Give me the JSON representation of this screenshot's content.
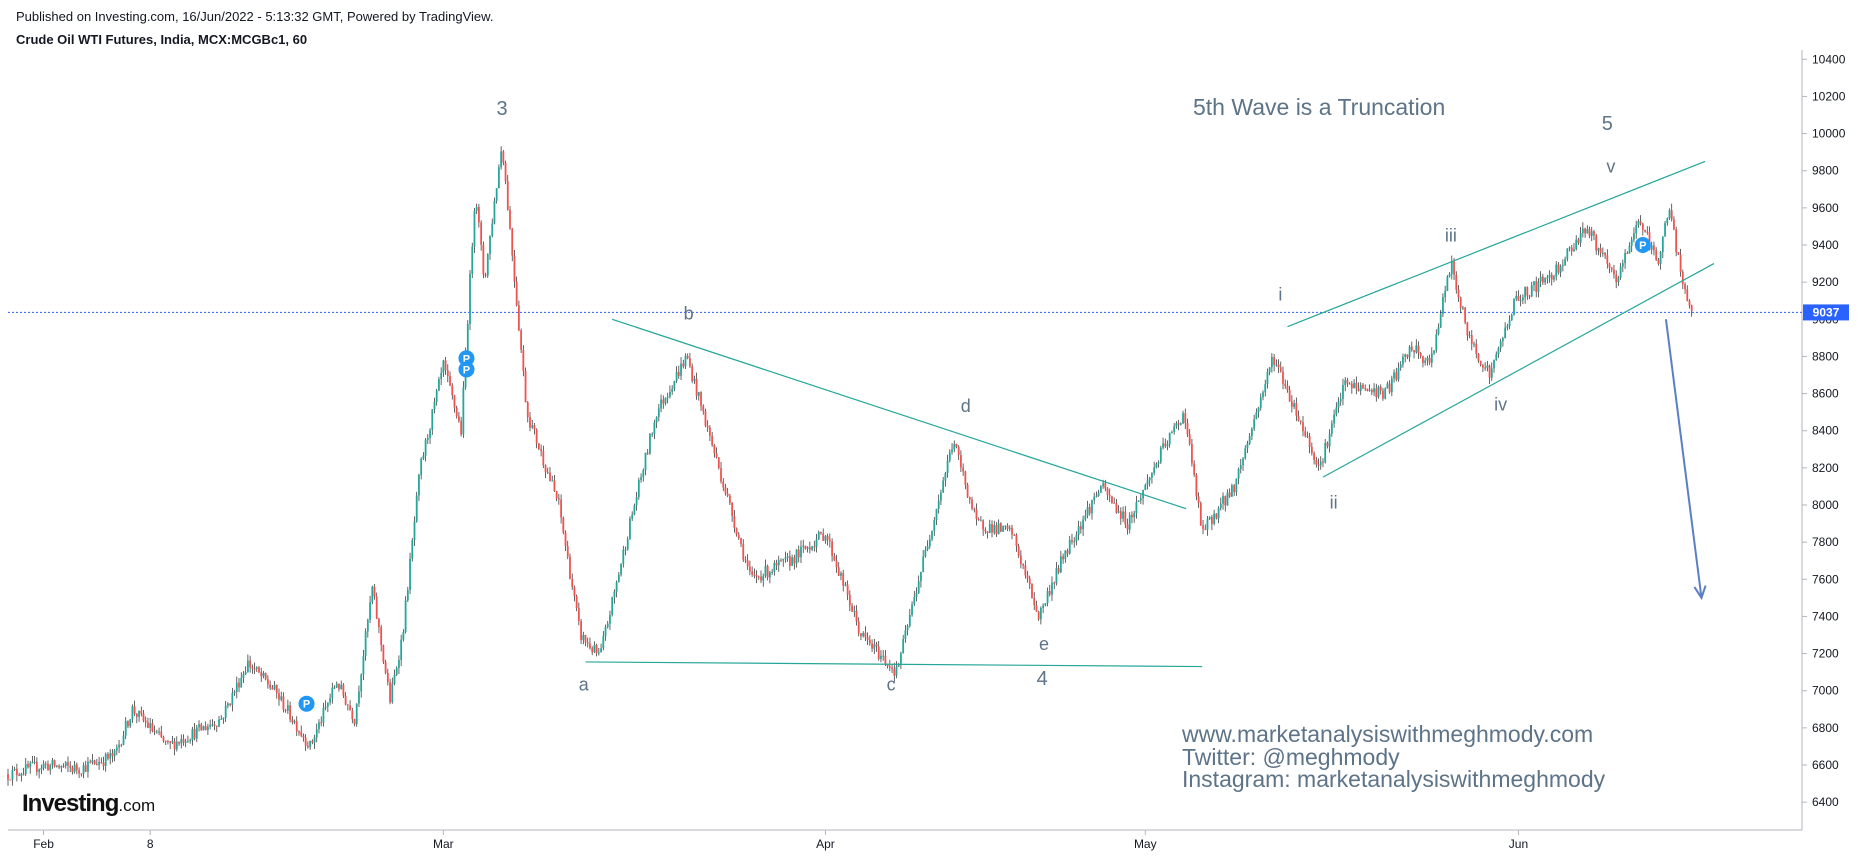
{
  "header": {
    "published": "Published on Investing.com, 16/Jun/2022 - 5:13:32 GMT, Powered by TradingView.",
    "symbol": "Crude Oil WTI Futures, India, MCX:MCGBc1, 60"
  },
  "watermark": {
    "website": "www.marketanalysiswithmeghmody.com",
    "twitter": "Twitter: @meghmody",
    "instagram": "Instagram: marketanalysiswithmeghmody"
  },
  "logo": {
    "main": "Investing",
    "suffix": ".com"
  },
  "colors": {
    "candle_up": "#26a69a",
    "candle_down": "#ef5350",
    "wick": "#222222",
    "trendline": "#26a69a",
    "price_line": "#2962ff",
    "arrow": "#5b7fc4",
    "marker": "#2196f3",
    "wave_label": "#5d7387"
  },
  "chart_data": {
    "type": "line",
    "title": "5th Wave is a Truncation",
    "y_axis": {
      "ticks": [
        6400,
        6600,
        6800,
        7000,
        7200,
        7400,
        7600,
        7800,
        8000,
        8200,
        8400,
        8600,
        8800,
        9000,
        9200,
        9400,
        9600,
        9800,
        10000,
        10200,
        10400
      ],
      "ylim": [
        6250,
        10450
      ],
      "position": "right"
    },
    "x_axis": {
      "labels": [
        {
          "label": "Feb",
          "x": 20
        },
        {
          "label": "8",
          "x": 80
        },
        {
          "label": "Mar",
          "x": 245
        },
        {
          "label": "Apr",
          "x": 460
        },
        {
          "label": "May",
          "x": 640
        },
        {
          "label": "Jun",
          "x": 850
        }
      ],
      "xlim": [
        0,
        1000
      ]
    },
    "current_price": {
      "value": 9037,
      "label": "9037"
    },
    "price_path": [
      {
        "x": 0,
        "y": 6550
      },
      {
        "x": 20,
        "y": 6600
      },
      {
        "x": 40,
        "y": 6580
      },
      {
        "x": 60,
        "y": 6650
      },
      {
        "x": 70,
        "y": 6900
      },
      {
        "x": 90,
        "y": 6700
      },
      {
        "x": 120,
        "y": 6850
      },
      {
        "x": 135,
        "y": 7150
      },
      {
        "x": 150,
        "y": 7000
      },
      {
        "x": 170,
        "y": 6700
      },
      {
        "x": 185,
        "y": 7050
      },
      {
        "x": 195,
        "y": 6850
      },
      {
        "x": 205,
        "y": 7550
      },
      {
        "x": 215,
        "y": 6950
      },
      {
        "x": 222,
        "y": 7300
      },
      {
        "x": 232,
        "y": 8200
      },
      {
        "x": 245,
        "y": 8750
      },
      {
        "x": 255,
        "y": 8400
      },
      {
        "x": 263,
        "y": 9700
      },
      {
        "x": 268,
        "y": 9200
      },
      {
        "x": 278,
        "y": 9950
      },
      {
        "x": 292,
        "y": 8500
      },
      {
        "x": 310,
        "y": 8000
      },
      {
        "x": 322,
        "y": 7300
      },
      {
        "x": 333,
        "y": 7180
      },
      {
        "x": 350,
        "y": 7900
      },
      {
        "x": 365,
        "y": 8500
      },
      {
        "x": 382,
        "y": 8800
      },
      {
        "x": 400,
        "y": 8200
      },
      {
        "x": 418,
        "y": 7600
      },
      {
        "x": 440,
        "y": 7700
      },
      {
        "x": 460,
        "y": 7850
      },
      {
        "x": 480,
        "y": 7300
      },
      {
        "x": 500,
        "y": 7100
      },
      {
        "x": 515,
        "y": 7700
      },
      {
        "x": 532,
        "y": 8350
      },
      {
        "x": 545,
        "y": 7900
      },
      {
        "x": 565,
        "y": 7850
      },
      {
        "x": 580,
        "y": 7400
      },
      {
        "x": 595,
        "y": 7750
      },
      {
        "x": 615,
        "y": 8100
      },
      {
        "x": 630,
        "y": 7900
      },
      {
        "x": 650,
        "y": 8300
      },
      {
        "x": 662,
        "y": 8500
      },
      {
        "x": 672,
        "y": 7850
      },
      {
        "x": 690,
        "y": 8100
      },
      {
        "x": 712,
        "y": 8800
      },
      {
        "x": 725,
        "y": 8500
      },
      {
        "x": 738,
        "y": 8200
      },
      {
        "x": 752,
        "y": 8650
      },
      {
        "x": 775,
        "y": 8600
      },
      {
        "x": 790,
        "y": 8850
      },
      {
        "x": 800,
        "y": 8750
      },
      {
        "x": 812,
        "y": 9300
      },
      {
        "x": 822,
        "y": 8900
      },
      {
        "x": 834,
        "y": 8700
      },
      {
        "x": 848,
        "y": 9100
      },
      {
        "x": 870,
        "y": 9250
      },
      {
        "x": 888,
        "y": 9500
      },
      {
        "x": 905,
        "y": 9200
      },
      {
        "x": 918,
        "y": 9550
      },
      {
        "x": 928,
        "y": 9300
      },
      {
        "x": 935,
        "y": 9600
      },
      {
        "x": 943,
        "y": 9150
      },
      {
        "x": 948,
        "y": 9050
      }
    ],
    "wave_labels": [
      {
        "text": "3",
        "x": 278,
        "y": 10100,
        "size": 20
      },
      {
        "text": "a",
        "x": 324,
        "y": 7000,
        "size": 18
      },
      {
        "text": "b",
        "x": 383,
        "y": 9000,
        "size": 18
      },
      {
        "text": "c",
        "x": 497,
        "y": 7000,
        "size": 18
      },
      {
        "text": "d",
        "x": 539,
        "y": 8500,
        "size": 18
      },
      {
        "text": "e",
        "x": 583,
        "y": 7220,
        "size": 18
      },
      {
        "text": "4",
        "x": 582,
        "y": 7030,
        "size": 20
      },
      {
        "text": "i",
        "x": 716,
        "y": 9100,
        "size": 18
      },
      {
        "text": "ii",
        "x": 746,
        "y": 7980,
        "size": 18
      },
      {
        "text": "iii",
        "x": 812,
        "y": 9420,
        "size": 18
      },
      {
        "text": "iv",
        "x": 840,
        "y": 8510,
        "size": 18
      },
      {
        "text": "v",
        "x": 902,
        "y": 9790,
        "size": 18
      },
      {
        "text": "5",
        "x": 900,
        "y": 10020,
        "size": 20
      }
    ],
    "trendlines": [
      {
        "from": [
          340,
          9000
        ],
        "to": [
          663,
          7980
        ]
      },
      {
        "from": [
          325,
          7155
        ],
        "to": [
          672,
          7130
        ]
      },
      {
        "from": [
          720,
          8960
        ],
        "to": [
          955,
          9850
        ]
      },
      {
        "from": [
          740,
          8150
        ],
        "to": [
          960,
          9300
        ]
      }
    ],
    "arrow": {
      "from": [
        933,
        9000
      ],
      "to": [
        953,
        7500
      ]
    },
    "markers": [
      {
        "x": 168,
        "y": 6930,
        "label": "P"
      },
      {
        "x": 258,
        "y": 8790,
        "label": "P"
      },
      {
        "x": 258,
        "y": 8730,
        "label": "P"
      },
      {
        "x": 920,
        "y": 9400,
        "label": "P"
      }
    ],
    "grid": false,
    "legend": "none"
  }
}
